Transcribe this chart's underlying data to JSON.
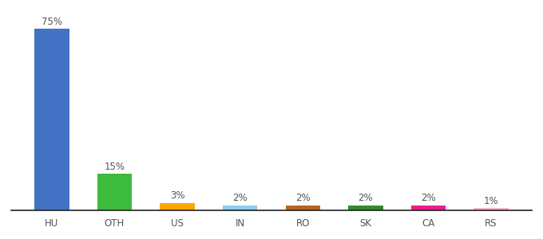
{
  "categories": [
    "HU",
    "OTH",
    "US",
    "IN",
    "RO",
    "SK",
    "CA",
    "RS"
  ],
  "values": [
    75,
    15,
    3,
    2,
    2,
    2,
    2,
    1
  ],
  "bar_colors": [
    "#4472C4",
    "#3DBB3D",
    "#FFA500",
    "#87CEEB",
    "#B8651A",
    "#2E8B2E",
    "#E91E8C",
    "#FFB6C1"
  ],
  "ylim": [
    0,
    82
  ],
  "background_color": "#ffffff",
  "label_fontsize": 8.5,
  "tick_fontsize": 8.5
}
